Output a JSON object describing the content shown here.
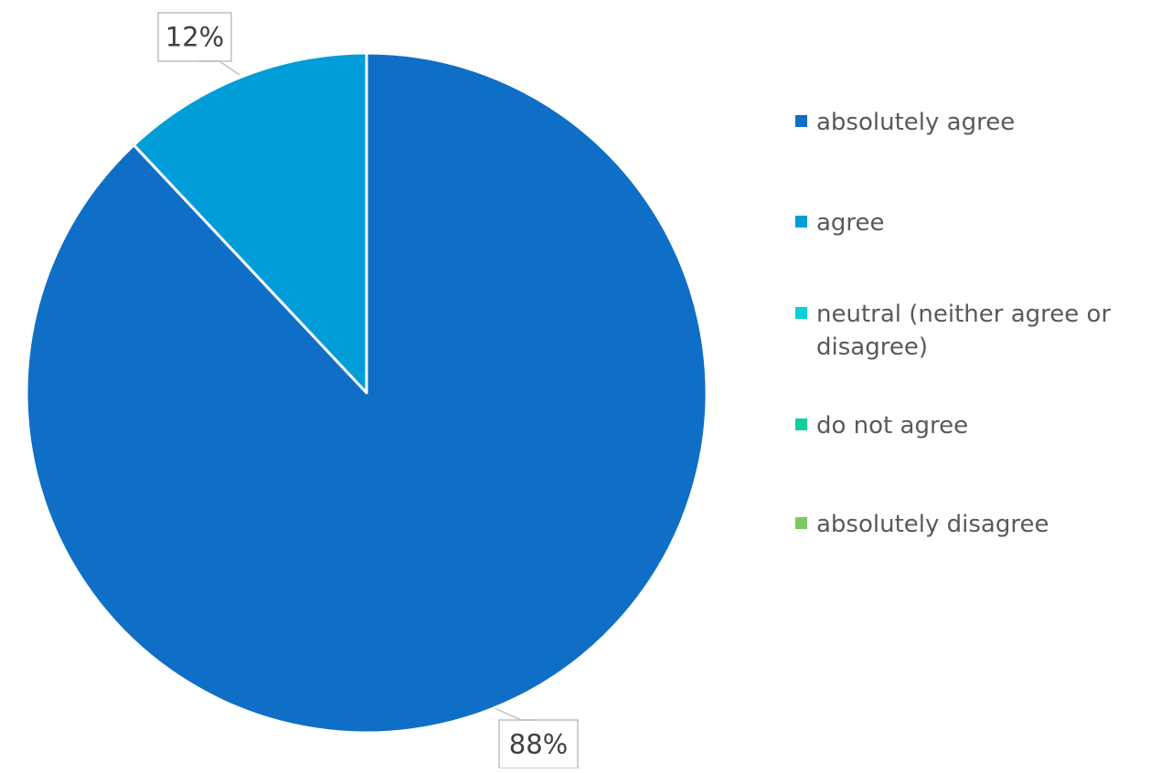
{
  "chart_data": {
    "type": "pie",
    "title": "",
    "start_angle_deg": 90,
    "direction": "clockwise",
    "legend_position": "right",
    "series": [
      {
        "slices": [
          {
            "label": "absolutely agree",
            "value": 88,
            "data_label": "88%",
            "color": "#0F6FC6"
          },
          {
            "label": "agree",
            "value": 12,
            "data_label": "12%",
            "color": "#009DD9"
          },
          {
            "label": "neutral (neither agree or disagree)",
            "value": 0,
            "data_label": "",
            "color": "#0BD0D9"
          },
          {
            "label": "do not agree",
            "value": 0,
            "data_label": "",
            "color": "#10CF9B"
          },
          {
            "label": "absolutely disagree",
            "value": 0,
            "data_label": "",
            "color": "#7CCA62"
          }
        ]
      }
    ]
  }
}
